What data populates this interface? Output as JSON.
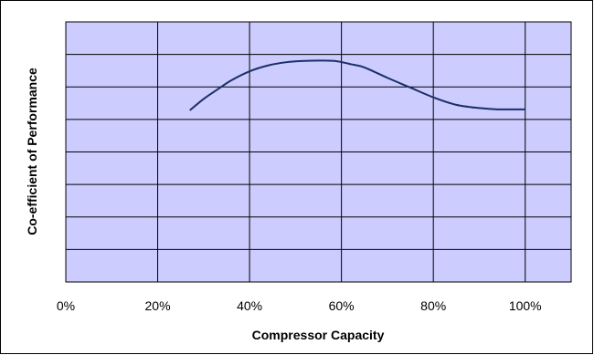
{
  "chart_data": {
    "type": "line",
    "title": "",
    "xlabel": "Compressor Capacity",
    "ylabel": "Co-efficient of Performance",
    "xlim": [
      0,
      110
    ],
    "ylim": [
      0,
      8
    ],
    "x_ticks": [
      0,
      20,
      40,
      60,
      80,
      100
    ],
    "x_tick_labels": [
      "0%",
      "20%",
      "40%",
      "60%",
      "80%",
      "100%"
    ],
    "y_gridlines": [
      1,
      2,
      3,
      4,
      5,
      6,
      7,
      8
    ],
    "y_tick_labels_shown": false,
    "grid": true,
    "legend": "none",
    "series": [
      {
        "x": [
          27,
          30,
          33,
          36,
          40,
          44,
          48,
          52,
          56,
          59,
          62,
          65,
          70,
          75,
          80,
          85,
          90,
          94,
          100
        ],
        "y": [
          5.28,
          5.63,
          5.92,
          6.2,
          6.48,
          6.66,
          6.76,
          6.8,
          6.81,
          6.79,
          6.7,
          6.6,
          6.28,
          5.98,
          5.68,
          5.45,
          5.35,
          5.31,
          5.31
        ]
      }
    ],
    "colors": {
      "plot_background": "#ccccff",
      "line": "#1a2f66",
      "grid": "#000000"
    }
  }
}
